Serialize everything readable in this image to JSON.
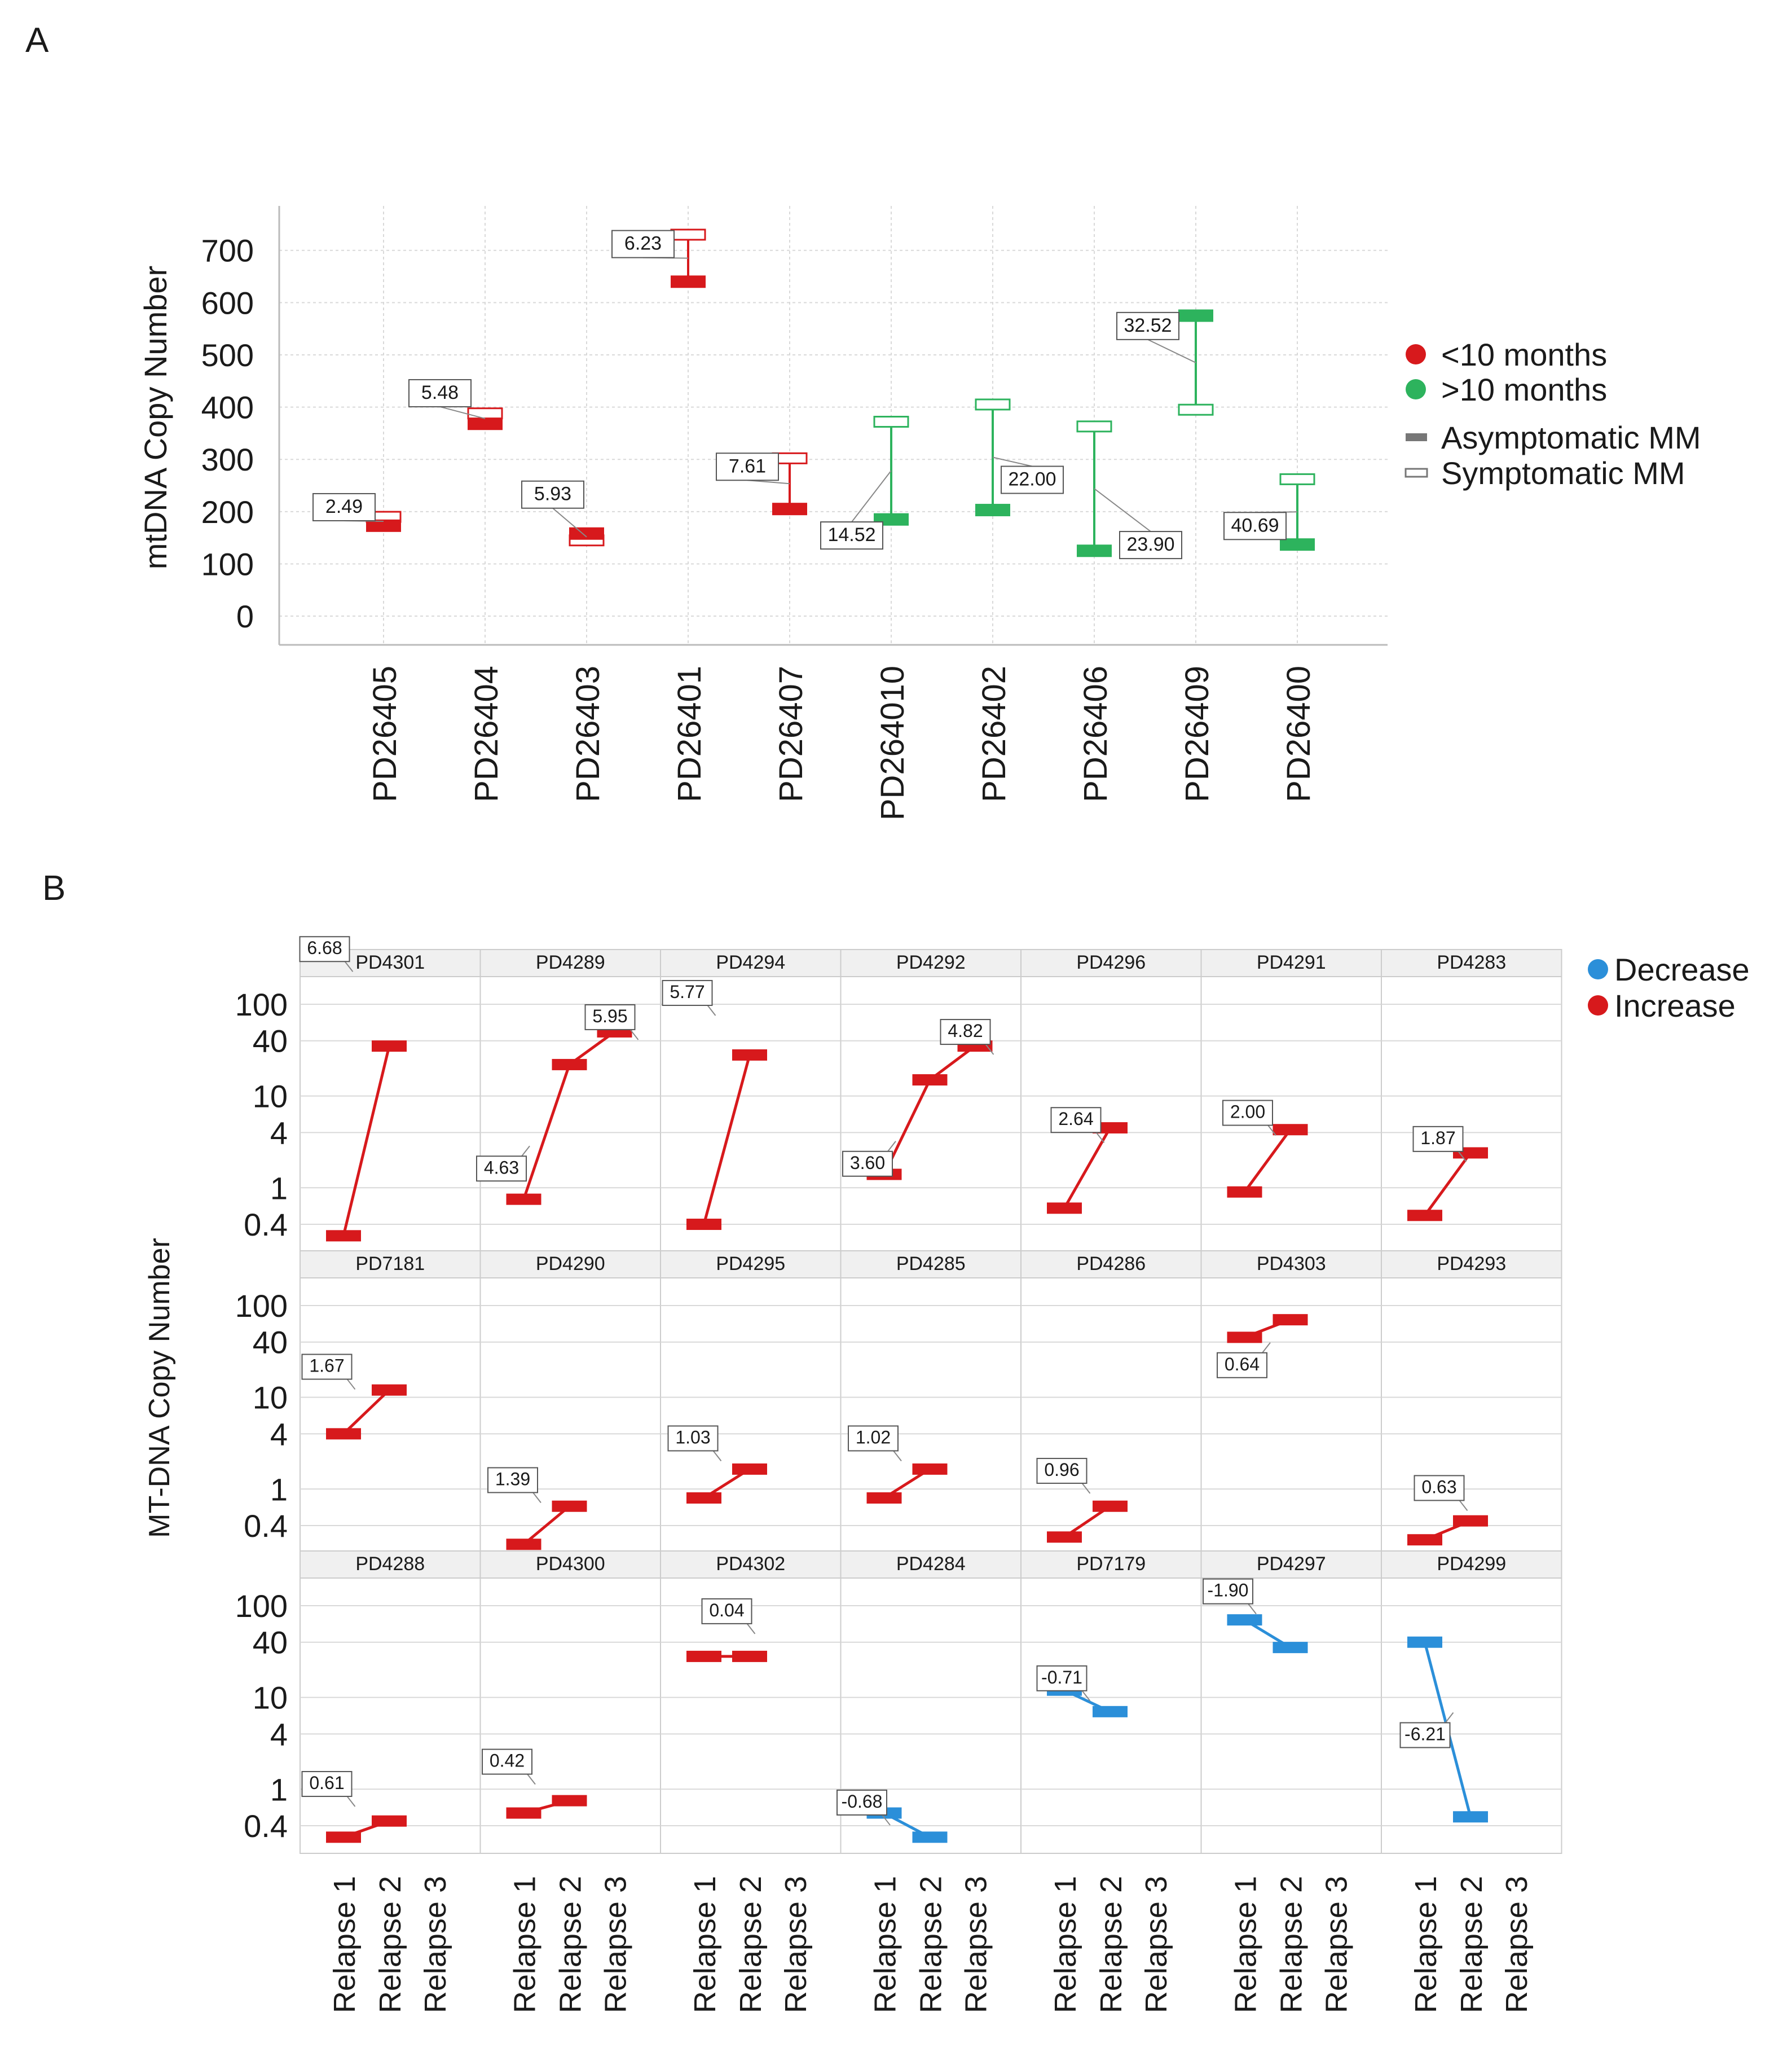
{
  "figure": {
    "panel_a_letter": "A",
    "panel_b_letter": "B"
  },
  "colors": {
    "red": "#d7191c",
    "green": "#2db35d",
    "blue": "#2b8fd9",
    "grid": "#d9d9d9",
    "strip": "#f0f0f0",
    "label_border": "#555555",
    "text": "#1a1a1a"
  },
  "chart_data": [
    {
      "type": "dumbbell",
      "panel": "A",
      "ylabel": "mtDNA Copy Number",
      "xlabel": "",
      "ylim": [
        -55,
        785
      ],
      "yticks": [
        0,
        100,
        200,
        300,
        400,
        500,
        600,
        700
      ],
      "grid": true,
      "legend": {
        "position": "right",
        "color_entries": [
          {
            "label": "<10 months",
            "color": "red"
          },
          {
            "label": ">10 months",
            "color": "green"
          }
        ],
        "shape_entries": [
          {
            "label": "Asymptomatic MM",
            "style": "filled"
          },
          {
            "label": "Symptomatic MM",
            "style": "hollow"
          }
        ]
      },
      "points": [
        {
          "sample": "PD26405",
          "asymptomatic": 173,
          "symptomatic": 190,
          "label": "2.49",
          "group": "<10 months"
        },
        {
          "sample": "PD26404",
          "asymptomatic": 368,
          "symptomatic": 388,
          "label": "5.48",
          "group": "<10 months"
        },
        {
          "sample": "PD26403",
          "asymptomatic": 158,
          "symptomatic": 145,
          "label": "5.93",
          "group": "<10 months"
        },
        {
          "sample": "PD26401",
          "asymptomatic": 640,
          "symptomatic": 730,
          "label": "6.23",
          "group": "<10 months"
        },
        {
          "sample": "PD26407",
          "asymptomatic": 205,
          "symptomatic": 302,
          "label": "7.61",
          "group": "<10 months"
        },
        {
          "sample": "PD264010",
          "asymptomatic": 185,
          "symptomatic": 372,
          "label": "14.52",
          "group": ">10 months"
        },
        {
          "sample": "PD26402",
          "asymptomatic": 203,
          "symptomatic": 405,
          "label": "22.00",
          "group": ">10 months"
        },
        {
          "sample": "PD26406",
          "asymptomatic": 125,
          "symptomatic": 363,
          "label": "23.90",
          "group": ">10 months"
        },
        {
          "sample": "PD26409",
          "asymptomatic": 575,
          "symptomatic": 395,
          "label": "32.52",
          "group": ">10 months"
        },
        {
          "sample": "PD26400",
          "asymptomatic": 137,
          "symptomatic": 262,
          "label": "40.69",
          "group": ">10 months"
        }
      ]
    },
    {
      "type": "line",
      "panel": "B",
      "ylabel": "MT-DNA Copy Number",
      "yscale": "log",
      "ylim": [
        0.2,
        200
      ],
      "yticks": [
        0.4,
        1,
        4,
        10,
        40,
        100
      ],
      "ytick_labels": [
        "0.4",
        "1",
        "4",
        "10",
        "40",
        "100"
      ],
      "categories": [
        "Relapse 1",
        "Relapse 2",
        "Relapse 3"
      ],
      "grid": true,
      "legend": {
        "position": "right",
        "entries": [
          {
            "label": "Decrease",
            "color": "blue"
          },
          {
            "label": "Increase",
            "color": "red"
          }
        ]
      },
      "facets": [
        {
          "name": "PD4301",
          "values": [
            0.3,
            35
          ],
          "label": "6.68",
          "direction": "Increase"
        },
        {
          "name": "PD4289",
          "values": [
            0.75,
            22,
            50
          ],
          "label": "5.95",
          "label2": "4.63",
          "direction": "Increase"
        },
        {
          "name": "PD4294",
          "values": [
            0.4,
            28
          ],
          "label": "5.77",
          "direction": "Increase"
        },
        {
          "name": "PD4292",
          "values": [
            1.4,
            15,
            35
          ],
          "label": "4.82",
          "label2": "3.60",
          "direction": "Increase"
        },
        {
          "name": "PD4296",
          "values": [
            0.6,
            4.5
          ],
          "label": "2.64",
          "direction": "Increase"
        },
        {
          "name": "PD4291",
          "values": [
            0.9,
            4.3
          ],
          "label": "2.00",
          "direction": "Increase"
        },
        {
          "name": "PD4283",
          "values": [
            0.5,
            2.4
          ],
          "label": "1.87",
          "direction": "Increase"
        },
        {
          "name": "PD7181",
          "values": [
            4,
            12
          ],
          "label": "1.67",
          "direction": "Increase"
        },
        {
          "name": "PD4290",
          "values": [
            0.25,
            0.65
          ],
          "label": "1.39",
          "direction": "Increase"
        },
        {
          "name": "PD4295",
          "values": [
            0.8,
            1.65
          ],
          "label": "1.03",
          "direction": "Increase"
        },
        {
          "name": "PD4285",
          "values": [
            0.8,
            1.65
          ],
          "label": "1.02",
          "direction": "Increase"
        },
        {
          "name": "PD4286",
          "values": [
            0.3,
            0.65
          ],
          "label": "0.96",
          "direction": "Increase"
        },
        {
          "name": "PD4303",
          "values": [
            45,
            70
          ],
          "label": "0.64",
          "direction": "Increase"
        },
        {
          "name": "PD4293",
          "values": [
            0.28,
            0.45
          ],
          "label": "0.63",
          "direction": "Increase"
        },
        {
          "name": "PD4288",
          "values": [
            0.3,
            0.45
          ],
          "label": "0.61",
          "direction": "Increase"
        },
        {
          "name": "PD4300",
          "values": [
            0.55,
            0.75
          ],
          "label": "0.42",
          "direction": "Increase"
        },
        {
          "name": "PD4302",
          "values": [
            28,
            28
          ],
          "label": "0.04",
          "direction": "Increase"
        },
        {
          "name": "PD4284",
          "values": [
            0.55,
            0.3
          ],
          "label": "-0.68",
          "direction": "Decrease"
        },
        {
          "name": "PD7179",
          "values": [
            12,
            7
          ],
          "label": "-0.71",
          "direction": "Decrease"
        },
        {
          "name": "PD4297",
          "values": [
            70,
            35
          ],
          "label": "-1.90",
          "direction": "Decrease"
        },
        {
          "name": "PD4299",
          "values": [
            40,
            0.5
          ],
          "label": "-6.21",
          "direction": "Decrease"
        }
      ]
    }
  ]
}
